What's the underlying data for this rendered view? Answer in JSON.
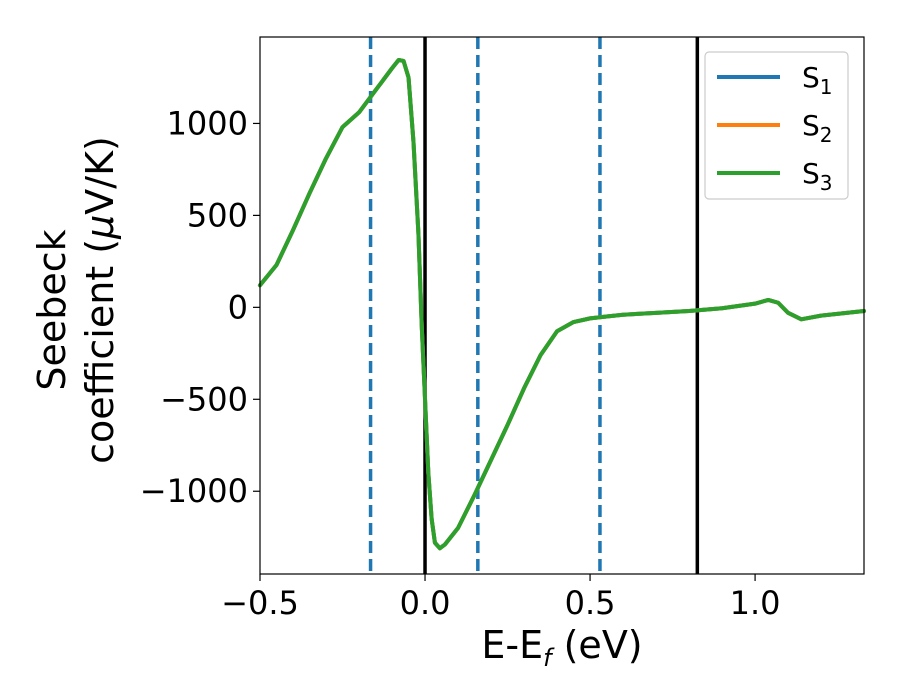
{
  "chart_data": {
    "type": "line",
    "xlabel": {
      "base": "E-E",
      "sub": "f",
      "rest": " (eV)"
    },
    "ylabel": {
      "line1": "Seebeck",
      "line2_pre": "coefficient  (",
      "mu": "μ",
      "line2_post": "V/K)"
    },
    "xlim": [
      -0.5,
      1.33
    ],
    "ylim": [
      -1450,
      1470
    ],
    "xticks": [
      {
        "value": -0.5,
        "label": "−0.5"
      },
      {
        "value": 0.0,
        "label": "0.0"
      },
      {
        "value": 0.5,
        "label": "0.5"
      },
      {
        "value": 1.0,
        "label": "1.0"
      }
    ],
    "yticks": [
      {
        "value": -1000,
        "label": "−1000"
      },
      {
        "value": -500,
        "label": "−500"
      },
      {
        "value": 0,
        "label": "0"
      },
      {
        "value": 500,
        "label": "500"
      },
      {
        "value": 1000,
        "label": "1000"
      }
    ],
    "vlines_dashed": {
      "color": "#1f77b4",
      "x": [
        -0.165,
        0.16,
        0.53
      ]
    },
    "vlines_solid": {
      "color": "#000000",
      "x": [
        0.0,
        0.825
      ]
    },
    "legend_position": "top-right",
    "series": [
      {
        "name": "S",
        "sub": "1",
        "color": "#1f77b4",
        "x": [
          -0.5,
          -0.45,
          -0.4,
          -0.35,
          -0.3,
          -0.25,
          -0.2,
          -0.15,
          -0.1,
          -0.08,
          -0.065,
          -0.05,
          -0.035,
          -0.02,
          -0.01,
          0.0,
          0.01,
          0.02,
          0.03,
          0.045,
          0.06,
          0.1,
          0.15,
          0.2,
          0.25,
          0.3,
          0.35,
          0.4,
          0.45,
          0.5,
          0.55,
          0.6,
          0.7,
          0.8,
          0.9,
          1.0,
          1.04,
          1.07,
          1.1,
          1.14,
          1.2,
          1.33
        ],
        "y": [
          120,
          230,
          420,
          620,
          810,
          980,
          1060,
          1180,
          1300,
          1345,
          1340,
          1250,
          900,
          400,
          -100,
          -500,
          -900,
          -1150,
          -1280,
          -1310,
          -1290,
          -1200,
          -1020,
          -830,
          -640,
          -440,
          -260,
          -130,
          -80,
          -60,
          -50,
          -40,
          -30,
          -20,
          -5,
          20,
          40,
          25,
          -30,
          -65,
          -45,
          -20
        ]
      },
      {
        "name": "S",
        "sub": "2",
        "color": "#ff7f0e",
        "x": [
          -0.5,
          -0.45,
          -0.4,
          -0.35,
          -0.3,
          -0.25,
          -0.2,
          -0.15,
          -0.1,
          -0.08,
          -0.065,
          -0.05,
          -0.035,
          -0.02,
          -0.01,
          0.0,
          0.01,
          0.02,
          0.03,
          0.045,
          0.06,
          0.1,
          0.15,
          0.2,
          0.25,
          0.3,
          0.35,
          0.4,
          0.45,
          0.5,
          0.55,
          0.6,
          0.7,
          0.8,
          0.9,
          1.0,
          1.04,
          1.07,
          1.1,
          1.14,
          1.2,
          1.33
        ],
        "y": [
          120,
          230,
          420,
          620,
          810,
          980,
          1060,
          1180,
          1300,
          1345,
          1340,
          1250,
          900,
          400,
          -100,
          -500,
          -900,
          -1150,
          -1280,
          -1310,
          -1290,
          -1200,
          -1020,
          -830,
          -640,
          -440,
          -260,
          -130,
          -80,
          -60,
          -50,
          -40,
          -30,
          -20,
          -5,
          20,
          40,
          25,
          -30,
          -65,
          -45,
          -20
        ]
      },
      {
        "name": "S",
        "sub": "3",
        "color": "#2ca02c",
        "x": [
          -0.5,
          -0.45,
          -0.4,
          -0.35,
          -0.3,
          -0.25,
          -0.2,
          -0.15,
          -0.1,
          -0.08,
          -0.065,
          -0.05,
          -0.035,
          -0.02,
          -0.01,
          0.0,
          0.01,
          0.02,
          0.03,
          0.045,
          0.06,
          0.1,
          0.15,
          0.2,
          0.25,
          0.3,
          0.35,
          0.4,
          0.45,
          0.5,
          0.55,
          0.6,
          0.7,
          0.8,
          0.9,
          1.0,
          1.04,
          1.07,
          1.1,
          1.14,
          1.2,
          1.33
        ],
        "y": [
          120,
          230,
          420,
          620,
          810,
          980,
          1060,
          1180,
          1300,
          1345,
          1340,
          1250,
          900,
          400,
          -100,
          -500,
          -900,
          -1150,
          -1280,
          -1310,
          -1290,
          -1200,
          -1020,
          -830,
          -640,
          -440,
          -260,
          -130,
          -80,
          -60,
          -50,
          -40,
          -30,
          -20,
          -5,
          20,
          40,
          25,
          -30,
          -65,
          -45,
          -20
        ]
      }
    ]
  }
}
